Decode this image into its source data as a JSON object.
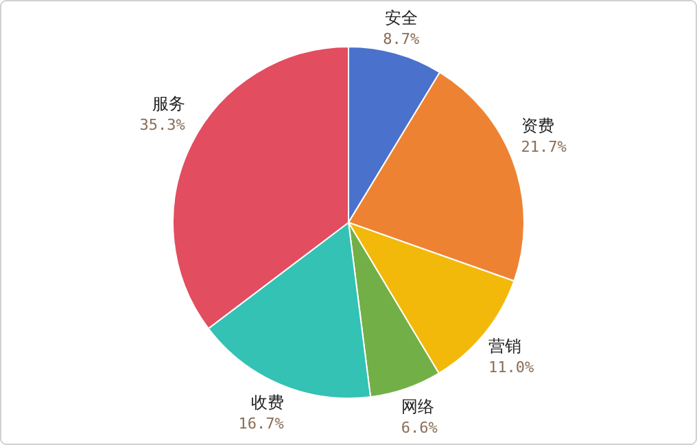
{
  "chart_data": {
    "type": "pie",
    "categories": [
      "安全",
      "资费",
      "营销",
      "网络",
      "收费",
      "服务"
    ],
    "values": [
      8.7,
      21.7,
      11.0,
      6.6,
      16.7,
      35.3
    ],
    "colors": [
      "#4a72cc",
      "#ee8233",
      "#f3b90a",
      "#72b047",
      "#33c2b4",
      "#e24d60"
    ],
    "value_labels": [
      "8.7%",
      "21.7%",
      "11.0%",
      "6.6%",
      "16.7%",
      "35.3%"
    ]
  }
}
